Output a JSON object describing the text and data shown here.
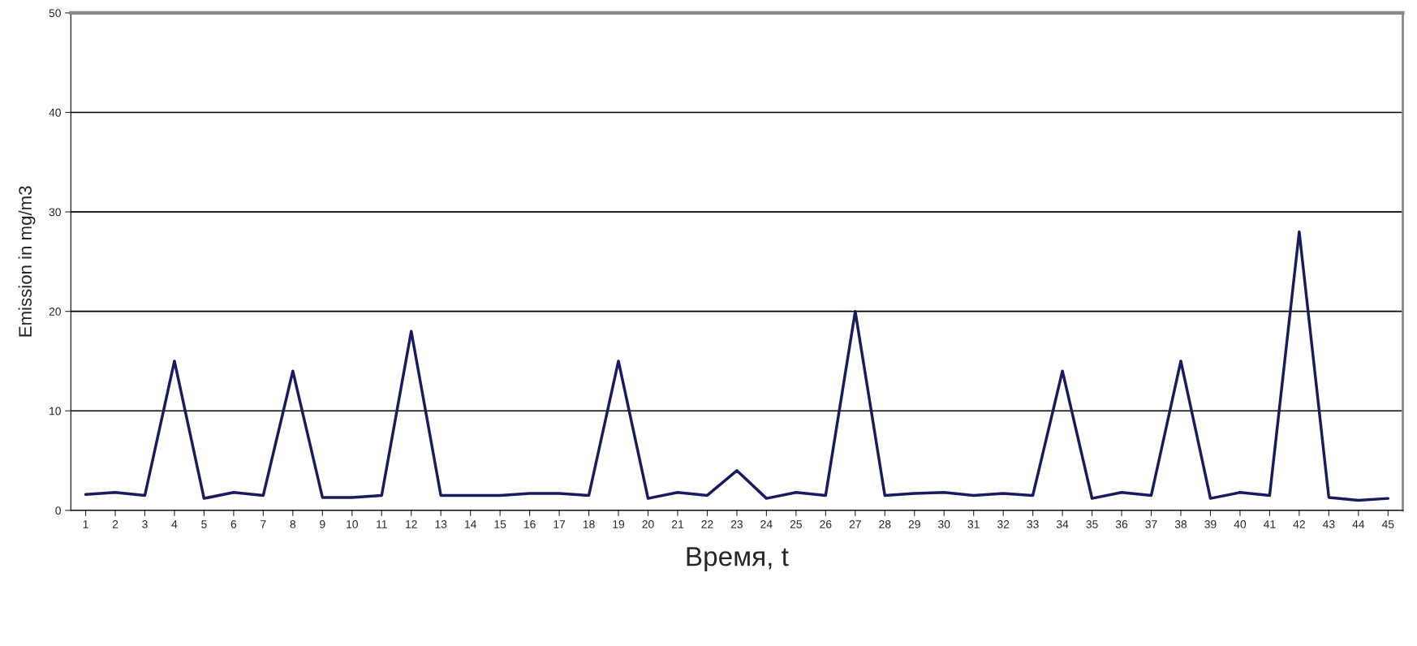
{
  "chart_data": {
    "type": "line",
    "xlabel": "Время, t",
    "ylabel": "Emission in mg/m3",
    "categories": [
      "1",
      "2",
      "3",
      "4",
      "5",
      "6",
      "7",
      "8",
      "9",
      "10",
      "11",
      "12",
      "13",
      "14",
      "15",
      "16",
      "17",
      "18",
      "19",
      "20",
      "21",
      "22",
      "23",
      "24",
      "25",
      "26",
      "27",
      "28",
      "29",
      "30",
      "31",
      "32",
      "33",
      "34",
      "35",
      "36",
      "37",
      "38",
      "39",
      "40",
      "41",
      "42",
      "43",
      "44",
      "45"
    ],
    "series": [
      {
        "color": "#1a1a5e",
        "values": [
          1.6,
          1.8,
          1.5,
          15,
          1.2,
          1.8,
          1.5,
          14,
          1.3,
          1.3,
          1.5,
          18,
          1.5,
          1.5,
          1.5,
          1.7,
          1.7,
          1.5,
          15,
          1.2,
          1.8,
          1.5,
          4,
          1.2,
          1.8,
          1.5,
          20,
          1.5,
          1.7,
          1.8,
          1.5,
          1.7,
          1.5,
          14,
          1.2,
          1.8,
          1.5,
          15,
          1.2,
          1.8,
          1.5,
          28,
          1.3,
          1.0,
          1.2
        ]
      }
    ],
    "ylim": [
      0,
      50
    ],
    "yticks": [
      0,
      10,
      20,
      30,
      40,
      50
    ],
    "grid": "y",
    "legend": false,
    "marker": "none",
    "line_style": "solid"
  }
}
